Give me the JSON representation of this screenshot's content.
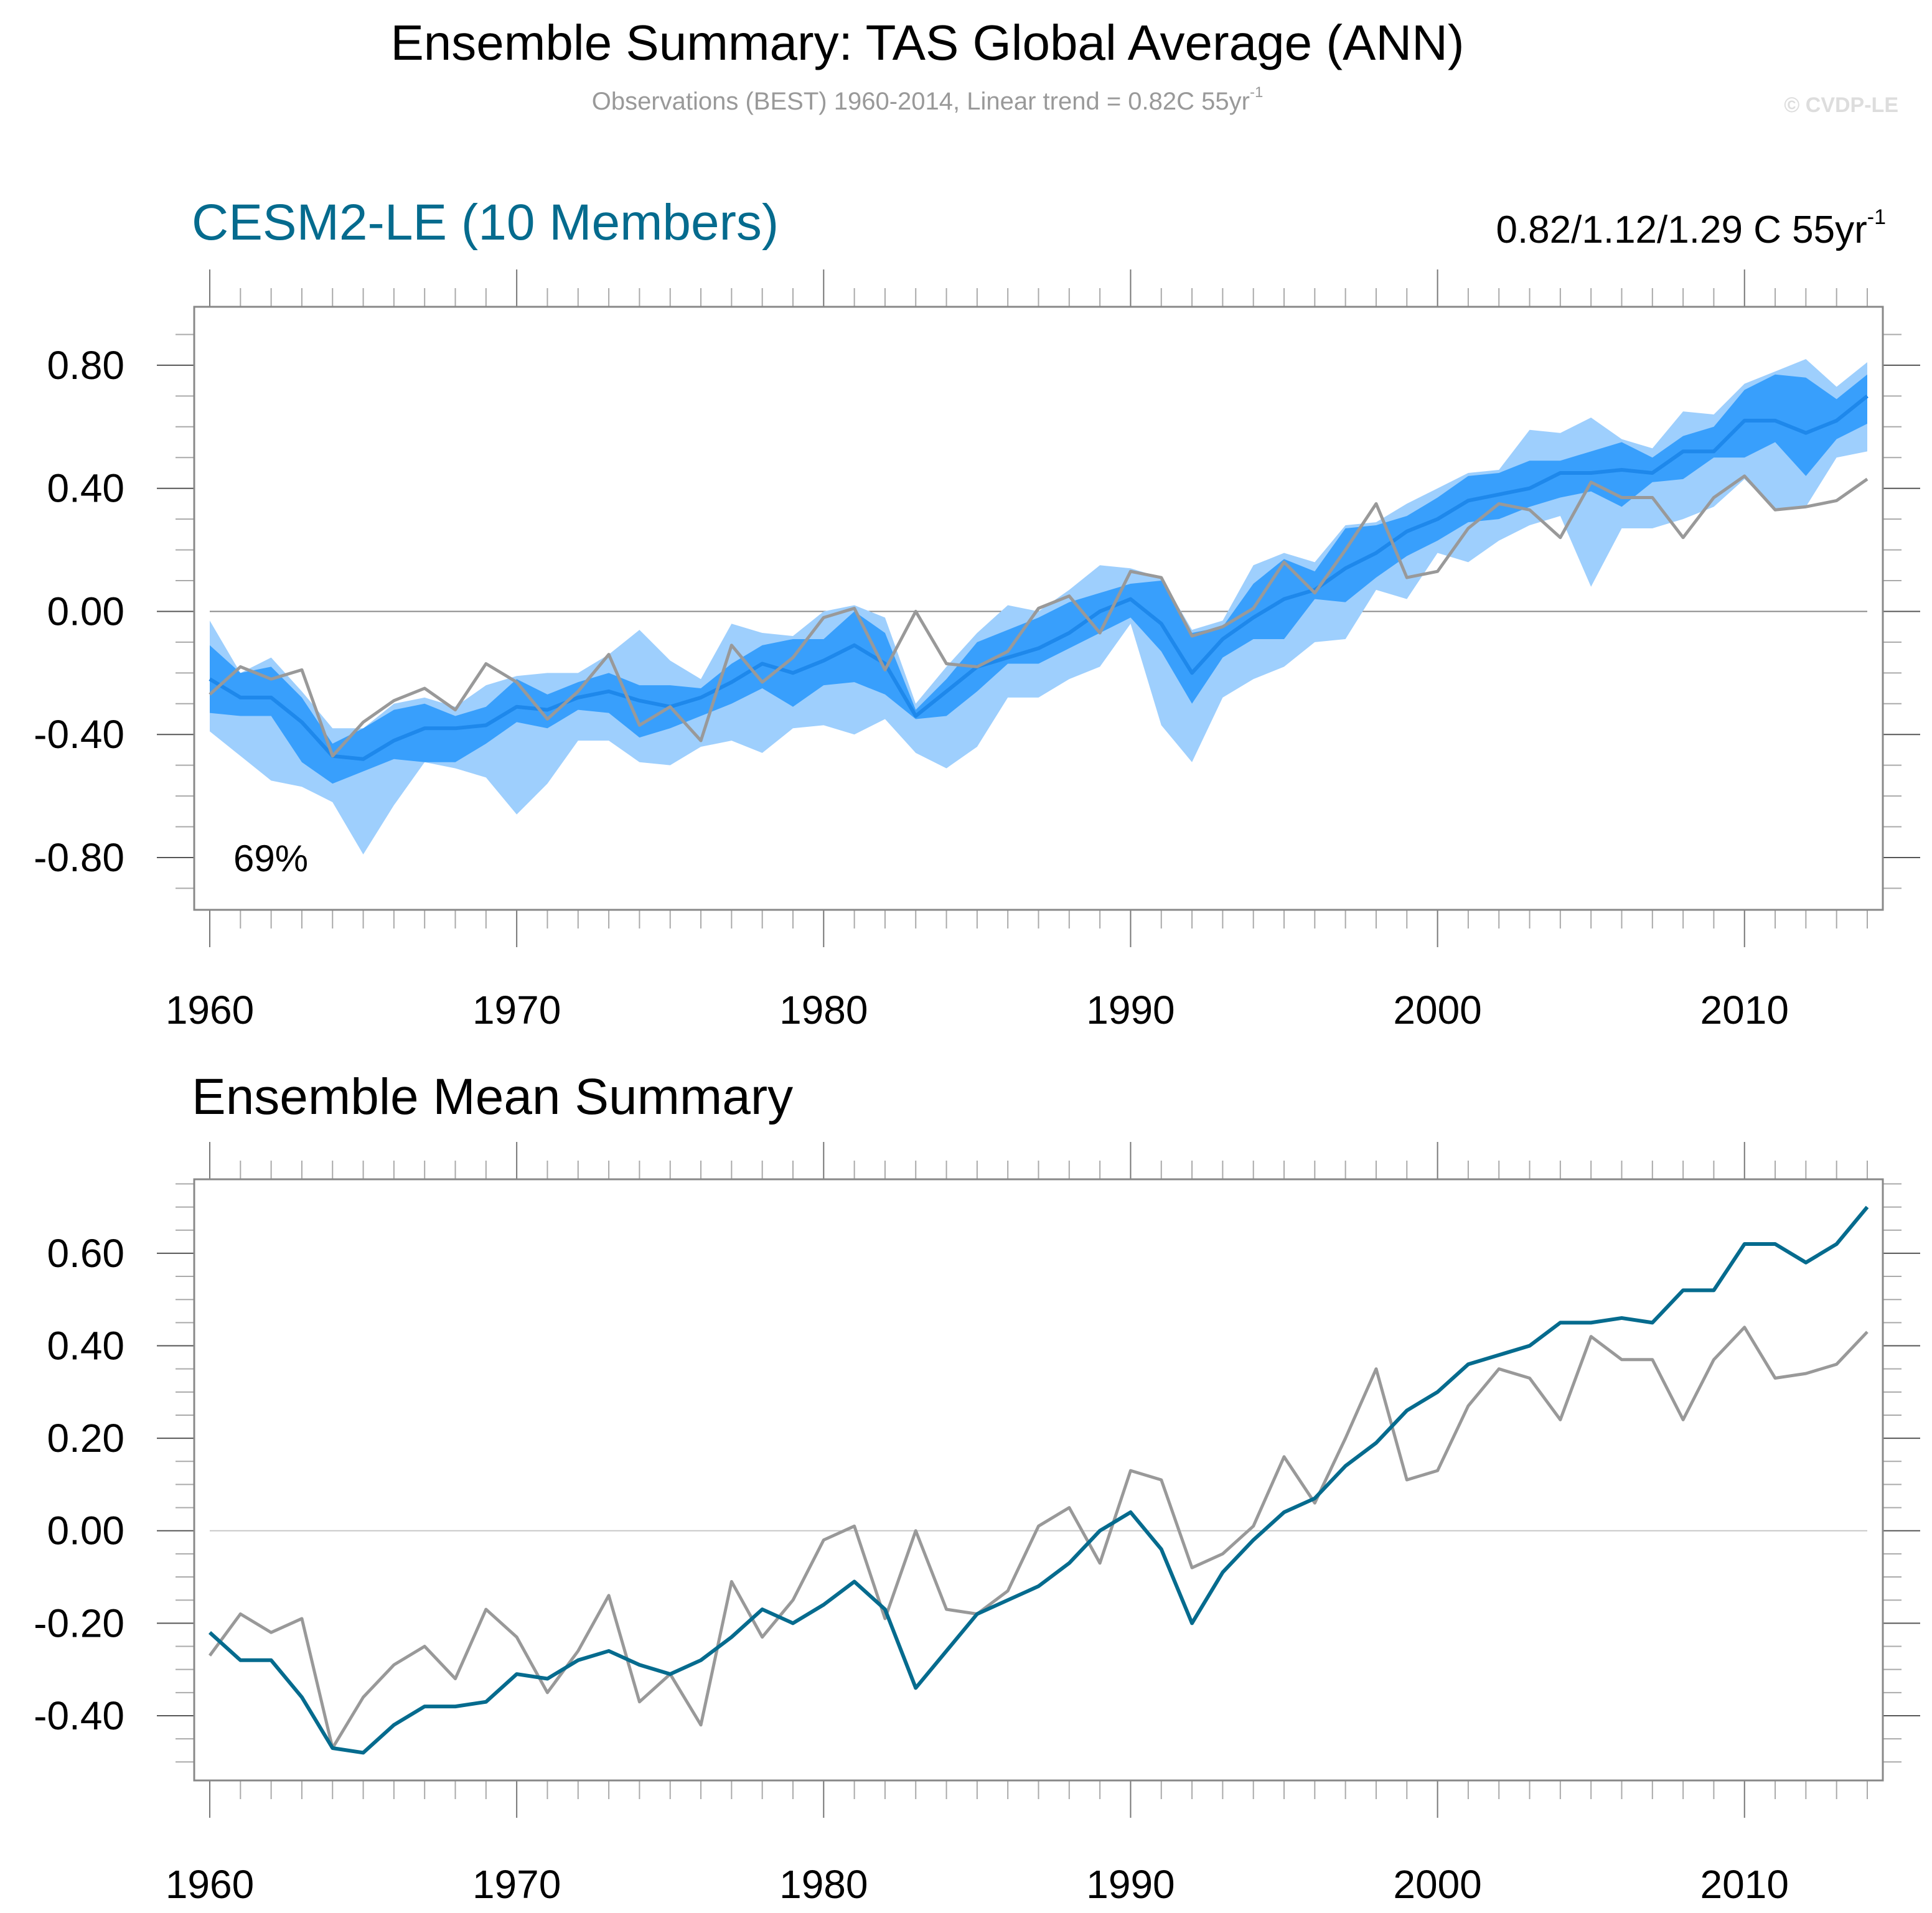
{
  "header": {
    "title": "Ensemble Summary: TAS Global Average (ANN)",
    "subtitle_main": "Observations (BEST) 1960-2014, Linear trend = 0.82C 55yr",
    "subtitle_sup": "-1",
    "credit": "© CVDP-LE"
  },
  "colors": {
    "light_band": "#9ecffd",
    "dark_band": "#389ffc",
    "ensemble_mean_top": "#1e88eb",
    "ensemble_mean_bottom": "#056b8e",
    "observations": "#999999",
    "model_title": "#056b8e",
    "axis": "#888888",
    "zero_line_top": "#888888",
    "zero_line_bottom": "#c8c8c8"
  },
  "chart_data": [
    {
      "type": "area",
      "panel": "top",
      "title": "CESM2-LE (10 Members)",
      "right_annotation_main": "0.82/1.12/1.29 C 55yr",
      "right_annotation_sup": "-1",
      "inset_label": "69%",
      "xlabel": "",
      "ylabel": "",
      "xlim": [
        1960,
        2014
      ],
      "ylim": [
        -0.97,
        0.99
      ],
      "x_ticks": [
        1960,
        1970,
        1980,
        1990,
        2000,
        2010
      ],
      "x_tick_labels": [
        "1960",
        "1970",
        "1980",
        "1990",
        "2000",
        "2010"
      ],
      "y_ticks": [
        0.8,
        0.4,
        0.0,
        -0.4,
        -0.8
      ],
      "y_tick_labels": [
        "0.80",
        "0.40",
        "0.00",
        "-0.40",
        "-0.80"
      ],
      "y_minor_step": 0.1,
      "zero_line": true,
      "x": [
        1960,
        1961,
        1962,
        1963,
        1964,
        1965,
        1966,
        1967,
        1968,
        1969,
        1970,
        1971,
        1972,
        1973,
        1974,
        1975,
        1976,
        1977,
        1978,
        1979,
        1980,
        1981,
        1982,
        1983,
        1984,
        1985,
        1986,
        1987,
        1988,
        1989,
        1990,
        1991,
        1992,
        1993,
        1994,
        1995,
        1996,
        1997,
        1998,
        1999,
        2000,
        2001,
        2002,
        2003,
        2004,
        2005,
        2006,
        2007,
        2008,
        2009,
        2010,
        2011,
        2012,
        2013,
        2014
      ],
      "bands": [
        {
          "name": "Ensemble min-max range",
          "upper": [
            -0.03,
            -0.2,
            -0.15,
            -0.26,
            -0.38,
            -0.38,
            -0.3,
            -0.28,
            -0.31,
            -0.24,
            -0.21,
            -0.2,
            -0.2,
            -0.14,
            -0.06,
            -0.16,
            -0.22,
            -0.04,
            -0.07,
            -0.08,
            0.0,
            0.02,
            -0.02,
            -0.3,
            -0.18,
            -0.07,
            0.02,
            0.0,
            0.07,
            0.15,
            0.14,
            0.11,
            -0.06,
            -0.03,
            0.15,
            0.19,
            0.16,
            0.28,
            0.29,
            0.35,
            0.4,
            0.45,
            0.46,
            0.59,
            0.58,
            0.63,
            0.56,
            0.53,
            0.65,
            0.64,
            0.74,
            0.78,
            0.82,
            0.73,
            0.81
          ],
          "lower": [
            -0.39,
            -0.47,
            -0.55,
            -0.57,
            -0.62,
            -0.79,
            -0.63,
            -0.49,
            -0.51,
            -0.54,
            -0.66,
            -0.56,
            -0.42,
            -0.42,
            -0.49,
            -0.5,
            -0.44,
            -0.42,
            -0.46,
            -0.38,
            -0.37,
            -0.4,
            -0.35,
            -0.46,
            -0.51,
            -0.44,
            -0.28,
            -0.28,
            -0.22,
            -0.18,
            -0.04,
            -0.37,
            -0.49,
            -0.28,
            -0.22,
            -0.18,
            -0.1,
            -0.09,
            0.07,
            0.04,
            0.19,
            0.16,
            0.23,
            0.28,
            0.31,
            0.08,
            0.27,
            0.27,
            0.3,
            0.34,
            0.43,
            0.33,
            0.34,
            0.5,
            0.52
          ]
        },
        {
          "name": "Ensemble 25th-75th percentile range",
          "upper": [
            -0.11,
            -0.2,
            -0.18,
            -0.28,
            -0.43,
            -0.38,
            -0.32,
            -0.3,
            -0.34,
            -0.31,
            -0.22,
            -0.27,
            -0.23,
            -0.2,
            -0.24,
            -0.24,
            -0.25,
            -0.17,
            -0.11,
            -0.09,
            -0.09,
            0.0,
            -0.07,
            -0.32,
            -0.22,
            -0.1,
            -0.06,
            -0.02,
            0.03,
            0.06,
            0.09,
            0.1,
            -0.07,
            -0.05,
            0.09,
            0.17,
            0.13,
            0.27,
            0.28,
            0.31,
            0.37,
            0.44,
            0.45,
            0.49,
            0.49,
            0.52,
            0.55,
            0.5,
            0.57,
            0.6,
            0.72,
            0.77,
            0.76,
            0.69,
            0.77
          ],
          "lower": [
            -0.33,
            -0.34,
            -0.34,
            -0.49,
            -0.56,
            -0.52,
            -0.48,
            -0.49,
            -0.49,
            -0.43,
            -0.36,
            -0.38,
            -0.32,
            -0.33,
            -0.41,
            -0.38,
            -0.34,
            -0.3,
            -0.25,
            -0.31,
            -0.24,
            -0.23,
            -0.27,
            -0.35,
            -0.34,
            -0.26,
            -0.17,
            -0.17,
            -0.12,
            -0.07,
            -0.02,
            -0.13,
            -0.3,
            -0.15,
            -0.09,
            -0.09,
            0.04,
            0.03,
            0.11,
            0.18,
            0.23,
            0.29,
            0.3,
            0.34,
            0.37,
            0.39,
            0.34,
            0.42,
            0.43,
            0.5,
            0.5,
            0.55,
            0.44,
            0.56,
            0.61
          ]
        }
      ],
      "series": [
        {
          "name": "Ensemble mean",
          "values": [
            -0.22,
            -0.28,
            -0.28,
            -0.36,
            -0.47,
            -0.48,
            -0.42,
            -0.38,
            -0.38,
            -0.37,
            -0.31,
            -0.32,
            -0.28,
            -0.26,
            -0.29,
            -0.31,
            -0.28,
            -0.23,
            -0.17,
            -0.2,
            -0.16,
            -0.11,
            -0.17,
            -0.34,
            -0.26,
            -0.18,
            -0.15,
            -0.12,
            -0.07,
            0.0,
            0.04,
            -0.04,
            -0.2,
            -0.09,
            -0.02,
            0.04,
            0.07,
            0.14,
            0.19,
            0.26,
            0.3,
            0.36,
            0.38,
            0.4,
            0.45,
            0.45,
            0.46,
            0.45,
            0.52,
            0.52,
            0.62,
            0.62,
            0.58,
            0.62,
            0.7
          ]
        },
        {
          "name": "Observations (BEST)",
          "values": [
            -0.27,
            -0.18,
            -0.22,
            -0.19,
            -0.47,
            -0.36,
            -0.29,
            -0.25,
            -0.32,
            -0.17,
            -0.23,
            -0.35,
            -0.26,
            -0.14,
            -0.37,
            -0.31,
            -0.42,
            -0.11,
            -0.23,
            -0.15,
            -0.02,
            0.01,
            -0.19,
            0.0,
            -0.17,
            -0.18,
            -0.13,
            0.01,
            0.05,
            -0.07,
            0.13,
            0.11,
            -0.08,
            -0.05,
            0.01,
            0.16,
            0.06,
            0.2,
            0.35,
            0.11,
            0.13,
            0.27,
            0.35,
            0.33,
            0.24,
            0.42,
            0.37,
            0.37,
            0.24,
            0.37,
            0.44,
            0.33,
            0.34,
            0.36,
            0.43
          ]
        }
      ]
    },
    {
      "type": "line",
      "panel": "bottom",
      "title": "Ensemble Mean Summary",
      "xlabel": "",
      "ylabel": "",
      "xlim": [
        1960,
        2014
      ],
      "ylim": [
        -0.54,
        0.76
      ],
      "x_ticks": [
        1960,
        1970,
        1980,
        1990,
        2000,
        2010
      ],
      "x_tick_labels": [
        "1960",
        "1970",
        "1980",
        "1990",
        "2000",
        "2010"
      ],
      "y_ticks": [
        0.6,
        0.4,
        0.2,
        0.0,
        -0.2,
        -0.4
      ],
      "y_tick_labels": [
        "0.60",
        "0.40",
        "0.20",
        "0.00",
        "-0.20",
        "-0.40"
      ],
      "y_minor_step": 0.05,
      "zero_line": true,
      "x": [
        1960,
        1961,
        1962,
        1963,
        1964,
        1965,
        1966,
        1967,
        1968,
        1969,
        1970,
        1971,
        1972,
        1973,
        1974,
        1975,
        1976,
        1977,
        1978,
        1979,
        1980,
        1981,
        1982,
        1983,
        1984,
        1985,
        1986,
        1987,
        1988,
        1989,
        1990,
        1991,
        1992,
        1993,
        1994,
        1995,
        1996,
        1997,
        1998,
        1999,
        2000,
        2001,
        2002,
        2003,
        2004,
        2005,
        2006,
        2007,
        2008,
        2009,
        2010,
        2011,
        2012,
        2013,
        2014
      ],
      "series": [
        {
          "name": "Observations (BEST)",
          "values": [
            -0.27,
            -0.18,
            -0.22,
            -0.19,
            -0.47,
            -0.36,
            -0.29,
            -0.25,
            -0.32,
            -0.17,
            -0.23,
            -0.35,
            -0.26,
            -0.14,
            -0.37,
            -0.31,
            -0.42,
            -0.11,
            -0.23,
            -0.15,
            -0.02,
            0.01,
            -0.19,
            0.0,
            -0.17,
            -0.18,
            -0.13,
            0.01,
            0.05,
            -0.07,
            0.13,
            0.11,
            -0.08,
            -0.05,
            0.01,
            0.16,
            0.06,
            0.2,
            0.35,
            0.11,
            0.13,
            0.27,
            0.35,
            0.33,
            0.24,
            0.42,
            0.37,
            0.37,
            0.24,
            0.37,
            0.44,
            0.33,
            0.34,
            0.36,
            0.43
          ]
        },
        {
          "name": "CESM2-LE ensemble mean",
          "values": [
            -0.22,
            -0.28,
            -0.28,
            -0.36,
            -0.47,
            -0.48,
            -0.42,
            -0.38,
            -0.38,
            -0.37,
            -0.31,
            -0.32,
            -0.28,
            -0.26,
            -0.29,
            -0.31,
            -0.28,
            -0.23,
            -0.17,
            -0.2,
            -0.16,
            -0.11,
            -0.17,
            -0.34,
            -0.26,
            -0.18,
            -0.15,
            -0.12,
            -0.07,
            0.0,
            0.04,
            -0.04,
            -0.2,
            -0.09,
            -0.02,
            0.04,
            0.07,
            0.14,
            0.19,
            0.26,
            0.3,
            0.36,
            0.38,
            0.4,
            0.45,
            0.45,
            0.46,
            0.45,
            0.52,
            0.52,
            0.62,
            0.62,
            0.58,
            0.62,
            0.7
          ]
        }
      ]
    }
  ]
}
